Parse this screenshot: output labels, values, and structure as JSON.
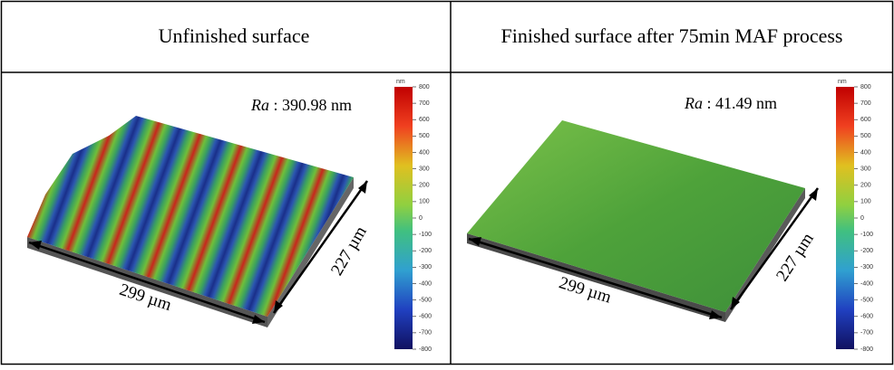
{
  "panels": [
    {
      "header": "Unfinished surface",
      "ra_symbol": "Ra",
      "ra_value": ": 390.98 nm",
      "length_label": "299 µm",
      "width_label": "227 µm",
      "colorbar": {
        "unit": "nm",
        "ticks": [
          800,
          700,
          600,
          500,
          400,
          300,
          200,
          100,
          0,
          -100,
          -200,
          -300,
          -400,
          -500,
          -600,
          -700,
          -800
        ]
      }
    },
    {
      "header": "Finished surface after 75min MAF process",
      "ra_symbol": "Ra",
      "ra_value": ": 41.49 nm",
      "length_label": "299 µm",
      "width_label": "227 µm",
      "colorbar": {
        "unit": "nm",
        "ticks": [
          800,
          700,
          600,
          500,
          400,
          300,
          200,
          100,
          0,
          -100,
          -200,
          -300,
          -400,
          -500,
          -600,
          -700,
          -800
        ]
      }
    }
  ]
}
